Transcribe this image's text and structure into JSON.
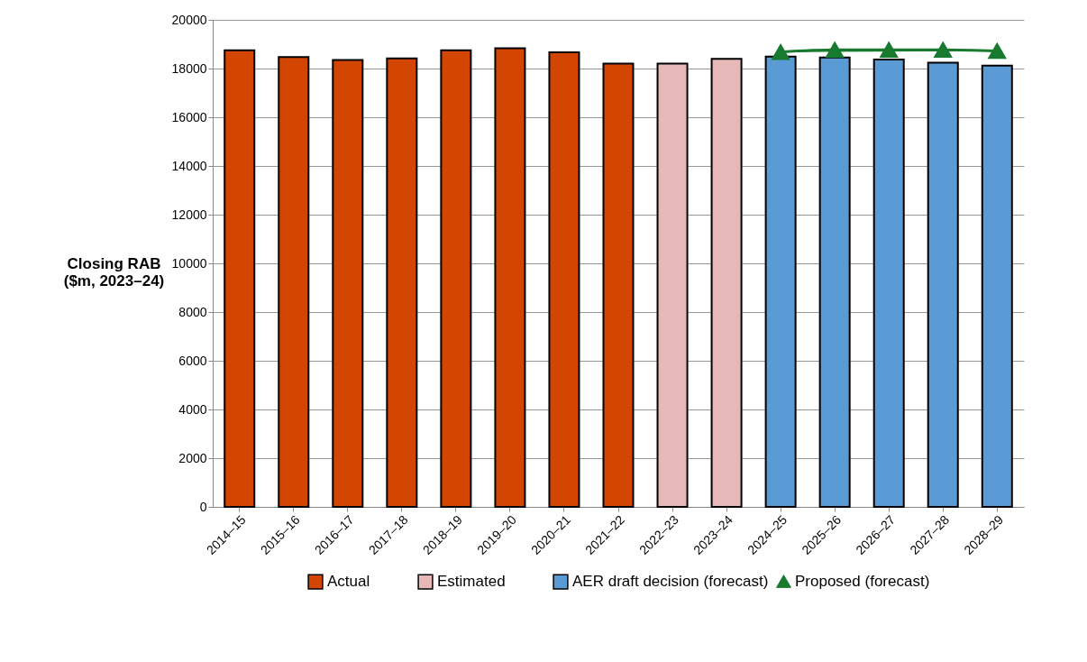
{
  "chart_data": {
    "type": "bar",
    "ylabel": "Closing RAB ($m, 2023–24)",
    "categories": [
      "2014–15",
      "2015–16",
      "2016–17",
      "2017–18",
      "2018–19",
      "2019–20",
      "2020–21",
      "2021–22",
      "2022–23",
      "2023–24",
      "2024–25",
      "2025–26",
      "2026–27",
      "2027–28",
      "2028–29"
    ],
    "series": [
      {
        "name": "Actual",
        "color": "#d24602",
        "values": [
          18750,
          18470,
          18350,
          18420,
          18750,
          18830,
          18670,
          18200,
          null,
          null,
          null,
          null,
          null,
          null,
          null
        ]
      },
      {
        "name": "Estimated",
        "color": "#e6b8b7",
        "values": [
          null,
          null,
          null,
          null,
          null,
          null,
          null,
          null,
          18200,
          18400,
          null,
          null,
          null,
          null,
          null
        ]
      },
      {
        "name": "AER draft decision (forecast)",
        "color": "#5b9bd5",
        "values": [
          null,
          null,
          null,
          null,
          null,
          null,
          null,
          null,
          null,
          null,
          18490,
          18450,
          18370,
          18240,
          18120
        ]
      },
      {
        "name": "Proposed (forecast)",
        "type": "line",
        "color": "#177a2f",
        "values": [
          null,
          null,
          null,
          null,
          null,
          null,
          null,
          null,
          null,
          null,
          18680,
          18770,
          18770,
          18770,
          18720
        ]
      }
    ],
    "ylim": [
      0,
      20000
    ],
    "yticks": [
      0,
      2000,
      4000,
      6000,
      8000,
      10000,
      12000,
      14000,
      16000,
      18000,
      20000
    ],
    "grid": "y",
    "legend": "bottom",
    "marker": "triangle"
  }
}
